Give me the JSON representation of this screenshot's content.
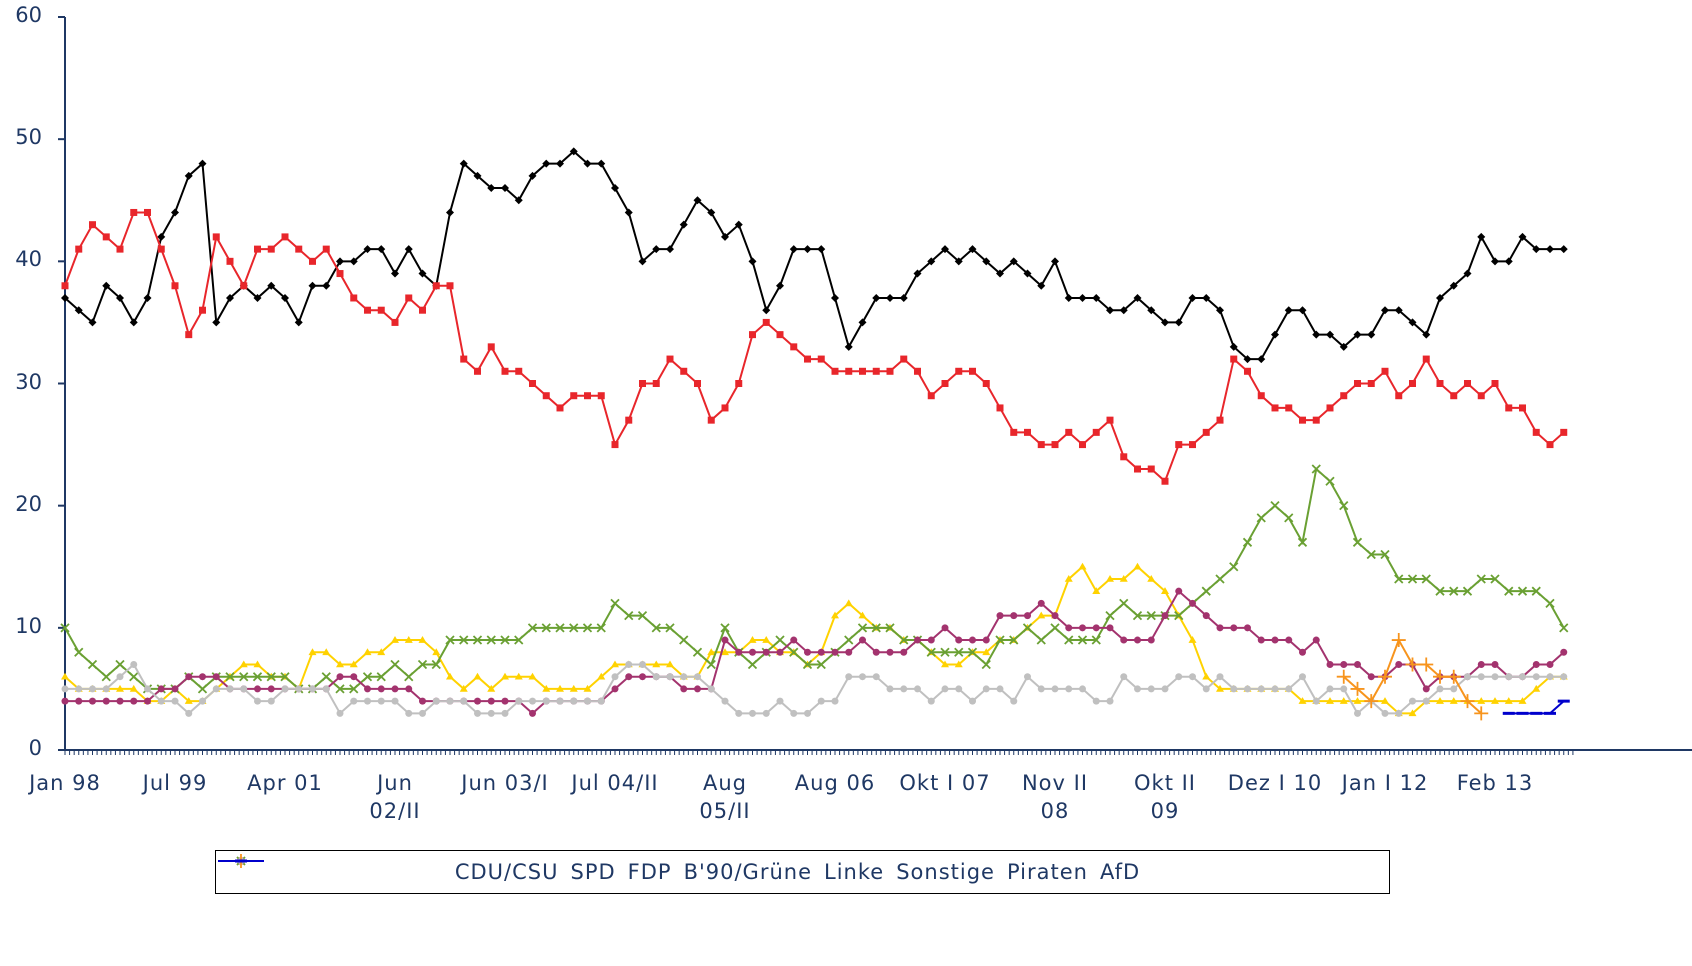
{
  "chart_data": {
    "type": "line",
    "categories": [
      "Jan 98",
      null,
      null,
      null,
      null,
      null,
      null,
      null,
      "Jul 99",
      null,
      null,
      null,
      null,
      null,
      null,
      null,
      "Apr 01",
      null,
      null,
      null,
      null,
      null,
      null,
      null,
      "Jun\n02/II",
      null,
      null,
      null,
      null,
      null,
      null,
      null,
      "Jun 03/I",
      null,
      null,
      null,
      null,
      null,
      null,
      null,
      "Jul 04/II",
      null,
      null,
      null,
      null,
      null,
      null,
      null,
      "Aug\n05/II",
      null,
      null,
      null,
      null,
      null,
      null,
      null,
      "Aug 06",
      null,
      null,
      null,
      null,
      null,
      null,
      null,
      "Okt I 07",
      null,
      null,
      null,
      null,
      null,
      null,
      null,
      "Nov II\n08",
      null,
      null,
      null,
      null,
      null,
      null,
      null,
      "Okt II\n09",
      null,
      null,
      null,
      null,
      null,
      null,
      null,
      "Dez I 10",
      null,
      null,
      null,
      null,
      null,
      null,
      null,
      "Jan I 12",
      null,
      null,
      null,
      null,
      null,
      null,
      null,
      "Feb 13",
      null,
      null,
      null,
      null,
      null
    ],
    "ylim": [
      0,
      60
    ],
    "yticks": [
      0,
      10,
      20,
      30,
      40,
      50,
      60
    ],
    "series": [
      {
        "name": "CDU/CSU",
        "color": "#000000",
        "marker": "diamond",
        "values": [
          37,
          36,
          35,
          38,
          37,
          35,
          37,
          42,
          44,
          47,
          48,
          35,
          37,
          38,
          37,
          38,
          37,
          35,
          38,
          38,
          40,
          40,
          41,
          41,
          39,
          41,
          39,
          38,
          44,
          48,
          47,
          46,
          46,
          45,
          47,
          48,
          48,
          49,
          48,
          48,
          46,
          44,
          40,
          41,
          41,
          43,
          45,
          44,
          42,
          43,
          40,
          36,
          38,
          41,
          41,
          41,
          37,
          33,
          35,
          37,
          37,
          37,
          39,
          40,
          41,
          40,
          41,
          40,
          39,
          40,
          39,
          38,
          40,
          37,
          37,
          37,
          36,
          36,
          37,
          36,
          35,
          35,
          37,
          37,
          36,
          33,
          32,
          32,
          34,
          36,
          36,
          34,
          34,
          33,
          34,
          34,
          36,
          36,
          35,
          34,
          37,
          38,
          39,
          42,
          40,
          40,
          42,
          41,
          41,
          41
        ]
      },
      {
        "name": "SPD",
        "color": "#e8262b",
        "marker": "square",
        "values": [
          38,
          41,
          43,
          42,
          41,
          44,
          44,
          41,
          38,
          34,
          36,
          42,
          40,
          38,
          41,
          41,
          42,
          41,
          40,
          41,
          39,
          37,
          36,
          36,
          35,
          37,
          36,
          38,
          38,
          32,
          31,
          33,
          31,
          31,
          30,
          29,
          28,
          29,
          29,
          29,
          25,
          27,
          30,
          30,
          32,
          31,
          30,
          27,
          28,
          30,
          34,
          35,
          34,
          33,
          32,
          32,
          31,
          31,
          31,
          31,
          31,
          32,
          31,
          29,
          30,
          31,
          31,
          30,
          28,
          26,
          26,
          25,
          25,
          26,
          25,
          26,
          27,
          24,
          23,
          23,
          22,
          25,
          25,
          26,
          27,
          32,
          31,
          29,
          28,
          28,
          27,
          27,
          28,
          29,
          30,
          30,
          31,
          29,
          30,
          32,
          30,
          29,
          30,
          29,
          30,
          28,
          28,
          26,
          25,
          26
        ]
      },
      {
        "name": "FDP",
        "color": "#ffd200",
        "marker": "triangle",
        "values": [
          6,
          5,
          5,
          5,
          5,
          5,
          4,
          4,
          5,
          4,
          4,
          5,
          6,
          7,
          7,
          6,
          6,
          5,
          8,
          8,
          7,
          7,
          8,
          8,
          9,
          9,
          9,
          8,
          6,
          5,
          6,
          5,
          6,
          6,
          6,
          5,
          5,
          5,
          5,
          6,
          7,
          7,
          7,
          7,
          7,
          6,
          6,
          8,
          8,
          8,
          9,
          9,
          8,
          8,
          7,
          8,
          11,
          12,
          11,
          10,
          10,
          9,
          9,
          8,
          7,
          7,
          8,
          8,
          9,
          9,
          10,
          11,
          11,
          14,
          15,
          13,
          14,
          14,
          15,
          14,
          13,
          11,
          9,
          6,
          5,
          5,
          5,
          5,
          5,
          5,
          4,
          4,
          4,
          4,
          4,
          4,
          4,
          3,
          3,
          4,
          4,
          4,
          4,
          4,
          4,
          4,
          4,
          5,
          6,
          6
        ]
      },
      {
        "name": "B'90/Grüne",
        "color": "#6aa033",
        "marker": "x",
        "values": [
          10,
          8,
          7,
          6,
          7,
          6,
          5,
          5,
          5,
          6,
          5,
          6,
          6,
          6,
          6,
          6,
          6,
          5,
          5,
          6,
          5,
          5,
          6,
          6,
          7,
          6,
          7,
          7,
          9,
          9,
          9,
          9,
          9,
          9,
          10,
          10,
          10,
          10,
          10,
          10,
          12,
          11,
          11,
          10,
          10,
          9,
          8,
          7,
          10,
          8,
          7,
          8,
          9,
          8,
          7,
          7,
          8,
          9,
          10,
          10,
          10,
          9,
          9,
          8,
          8,
          8,
          8,
          7,
          9,
          9,
          10,
          9,
          10,
          9,
          9,
          9,
          11,
          12,
          11,
          11,
          11,
          11,
          12,
          13,
          14,
          15,
          17,
          19,
          20,
          19,
          17,
          23,
          22,
          20,
          17,
          16,
          16,
          14,
          14,
          14,
          13,
          13,
          13,
          14,
          14,
          13,
          13,
          13,
          12,
          10
        ]
      },
      {
        "name": "Linke",
        "color": "#a3336e",
        "marker": "circle",
        "values": [
          4,
          4,
          4,
          4,
          4,
          4,
          4,
          5,
          5,
          6,
          6,
          6,
          5,
          5,
          5,
          5,
          5,
          5,
          5,
          5,
          6,
          6,
          5,
          5,
          5,
          5,
          4,
          4,
          4,
          4,
          4,
          4,
          4,
          4,
          3,
          4,
          4,
          4,
          4,
          4,
          5,
          6,
          6,
          6,
          6,
          5,
          5,
          5,
          9,
          8,
          8,
          8,
          8,
          9,
          8,
          8,
          8,
          8,
          9,
          8,
          8,
          8,
          9,
          9,
          10,
          9,
          9,
          9,
          11,
          11,
          11,
          12,
          11,
          10,
          10,
          10,
          10,
          9,
          9,
          9,
          11,
          13,
          12,
          11,
          10,
          10,
          10,
          9,
          9,
          9,
          8,
          9,
          7,
          7,
          7,
          6,
          6,
          7,
          7,
          5,
          6,
          6,
          6,
          7,
          7,
          6,
          6,
          7,
          7,
          8
        ]
      },
      {
        "name": "Sonstige",
        "color": "#c0c0c0",
        "marker": "circle",
        "values": [
          5,
          5,
          5,
          5,
          6,
          7,
          5,
          4,
          4,
          3,
          4,
          5,
          5,
          5,
          4,
          4,
          5,
          5,
          5,
          5,
          3,
          4,
          4,
          4,
          4,
          3,
          3,
          4,
          4,
          4,
          3,
          3,
          3,
          4,
          4,
          4,
          4,
          4,
          4,
          4,
          6,
          7,
          7,
          6,
          6,
          6,
          6,
          5,
          4,
          3,
          3,
          3,
          4,
          3,
          3,
          4,
          4,
          6,
          6,
          6,
          5,
          5,
          5,
          4,
          5,
          5,
          4,
          5,
          5,
          4,
          6,
          5,
          5,
          5,
          5,
          4,
          4,
          6,
          5,
          5,
          5,
          6,
          6,
          5,
          6,
          5,
          5,
          5,
          5,
          5,
          6,
          4,
          5,
          5,
          3,
          4,
          3,
          3,
          4,
          4,
          5,
          5,
          6,
          6,
          6,
          6,
          6,
          6,
          6,
          6
        ]
      },
      {
        "name": "Piraten",
        "color": "#f7941d",
        "marker": "plus",
        "values": [
          null,
          null,
          null,
          null,
          null,
          null,
          null,
          null,
          null,
          null,
          null,
          null,
          null,
          null,
          null,
          null,
          null,
          null,
          null,
          null,
          null,
          null,
          null,
          null,
          null,
          null,
          null,
          null,
          null,
          null,
          null,
          null,
          null,
          null,
          null,
          null,
          null,
          null,
          null,
          null,
          null,
          null,
          null,
          null,
          null,
          null,
          null,
          null,
          null,
          null,
          null,
          null,
          null,
          null,
          null,
          null,
          null,
          null,
          null,
          null,
          null,
          null,
          null,
          null,
          null,
          null,
          null,
          null,
          null,
          null,
          null,
          null,
          null,
          null,
          null,
          null,
          null,
          null,
          null,
          null,
          null,
          null,
          null,
          null,
          null,
          null,
          null,
          null,
          null,
          null,
          null,
          null,
          null,
          6,
          5,
          4,
          6,
          9,
          7,
          7,
          6,
          6,
          4,
          3,
          null,
          null,
          null,
          null,
          null,
          null
        ]
      },
      {
        "name": "AfD",
        "color": "#0000cc",
        "marker": "dash",
        "values": [
          null,
          null,
          null,
          null,
          null,
          null,
          null,
          null,
          null,
          null,
          null,
          null,
          null,
          null,
          null,
          null,
          null,
          null,
          null,
          null,
          null,
          null,
          null,
          null,
          null,
          null,
          null,
          null,
          null,
          null,
          null,
          null,
          null,
          null,
          null,
          null,
          null,
          null,
          null,
          null,
          null,
          null,
          null,
          null,
          null,
          null,
          null,
          null,
          null,
          null,
          null,
          null,
          null,
          null,
          null,
          null,
          null,
          null,
          null,
          null,
          null,
          null,
          null,
          null,
          null,
          null,
          null,
          null,
          null,
          null,
          null,
          null,
          null,
          null,
          null,
          null,
          null,
          null,
          null,
          null,
          null,
          null,
          null,
          null,
          null,
          null,
          null,
          null,
          null,
          null,
          null,
          null,
          null,
          null,
          null,
          null,
          null,
          null,
          null,
          null,
          null,
          null,
          null,
          null,
          null,
          3,
          3,
          3,
          3,
          4
        ]
      }
    ]
  }
}
